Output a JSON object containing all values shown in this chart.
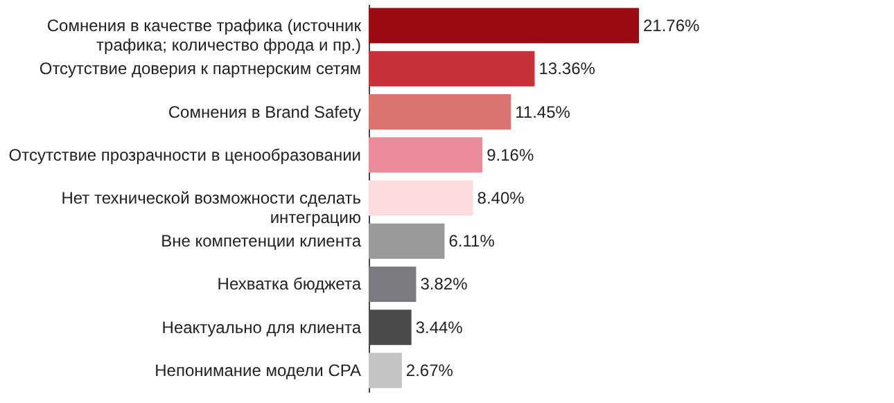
{
  "chart_data": {
    "type": "bar",
    "orientation": "horizontal",
    "categories": [
      "Сомнения в качестве трафика (источник\nтрафика; количество фрода и пр.)",
      "Отсутствие доверия к партнерским сетям",
      "Сомнения в Brand Safety",
      "Отсутствие прозрачности в ценообразовании",
      "Нет технической возможности сделать\nинтеграцию",
      "Вне компетенции клиента",
      "Нехватка бюджета",
      "Неактуально для клиента",
      "Непонимание модели CPA"
    ],
    "values": [
      21.76,
      13.36,
      11.45,
      9.16,
      8.4,
      6.11,
      3.82,
      3.44,
      2.67
    ],
    "value_labels": [
      "21.76%",
      "13.36%",
      "11.45%",
      "9.16%",
      "8.40%",
      "6.11%",
      "3.82%",
      "3.44%",
      "2.67%"
    ],
    "colors": [
      "#9c0a12",
      "#c7323a",
      "#d8736f",
      "#e98b98",
      "#fcdcdc",
      "#9a9a9a",
      "#7c7a80",
      "#4a4a4a",
      "#c4c4c4"
    ]
  }
}
